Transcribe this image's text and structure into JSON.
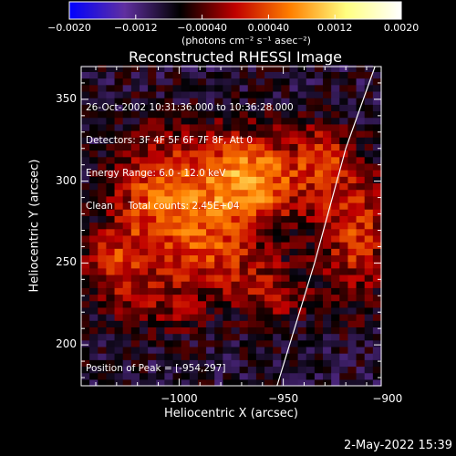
{
  "chart_data": {
    "type": "heatmap",
    "title": "Reconstructed RHESSI Image",
    "xlabel": "Heliocentric X (arcsec)",
    "ylabel": "Heliocentric Y (arcsec)",
    "xlim": [
      -1047,
      -903
    ],
    "ylim": [
      175,
      370
    ],
    "xticks": [
      {
        "value": -1000,
        "label": "−1000"
      },
      {
        "value": -950,
        "label": "−950"
      },
      {
        "value": -900,
        "label": "−900"
      }
    ],
    "yticks": [
      {
        "value": 200,
        "label": "200"
      },
      {
        "value": 250,
        "label": "250"
      },
      {
        "value": 300,
        "label": "300"
      },
      {
        "value": 350,
        "label": "350"
      }
    ],
    "colorbar": {
      "range": [
        -0.002,
        0.002
      ],
      "ticks": [
        {
          "value": -0.002,
          "label": "−0.0020"
        },
        {
          "value": -0.0012,
          "label": "−0.0012"
        },
        {
          "value": -0.0004,
          "label": "−0.00040"
        },
        {
          "value": 0.0004,
          "label": "0.00040"
        },
        {
          "value": 0.0012,
          "label": "0.0012"
        },
        {
          "value": 0.002,
          "label": "0.0020"
        }
      ],
      "unit_label": "(photons cm⁻² s⁻¹ asec⁻²)",
      "colors": [
        "#0000ff",
        "#6030a0",
        "#000000",
        "#c00000",
        "#ff8000",
        "#ffff80",
        "#ffffff"
      ]
    },
    "annotations": [
      "26-Oct-2002 10:31:36.000 to 10:36:28.000",
      "Detectors: 3F 4F 5F 6F 7F 8F, Att 0",
      "Energy Range: 6.0 - 12.0 keV",
      "Clean     Total counts: 2.45E+04"
    ],
    "peak_label": "Position of Peak = [-954,297]",
    "sources": [
      {
        "x": -968,
        "y": 302,
        "sx": 22,
        "sy": 20,
        "amp": 0.0016
      },
      {
        "x": -1012,
        "y": 292,
        "sx": 14,
        "sy": 26,
        "amp": 0.001
      },
      {
        "x": -985,
        "y": 258,
        "sx": 16,
        "sy": 20,
        "amp": 0.001
      },
      {
        "x": -1030,
        "y": 248,
        "sx": 12,
        "sy": 18,
        "amp": 0.0009
      },
      {
        "x": -915,
        "y": 268,
        "sx": 12,
        "sy": 28,
        "amp": 0.001
      },
      {
        "x": -955,
        "y": 232,
        "sx": 12,
        "sy": 14,
        "amp": 0.0007
      },
      {
        "x": -1005,
        "y": 222,
        "sx": 12,
        "sy": 12,
        "amp": 0.0005
      },
      {
        "x": -930,
        "y": 315,
        "sx": 8,
        "sy": 14,
        "amp": 0.0007
      }
    ],
    "background": -0.0008,
    "limb_line": [
      [
        -953,
        175
      ],
      [
        -935,
        250
      ],
      [
        -920,
        320
      ],
      [
        -906,
        370
      ]
    ]
  },
  "footer_timestamp": "2-May-2022 15:39"
}
